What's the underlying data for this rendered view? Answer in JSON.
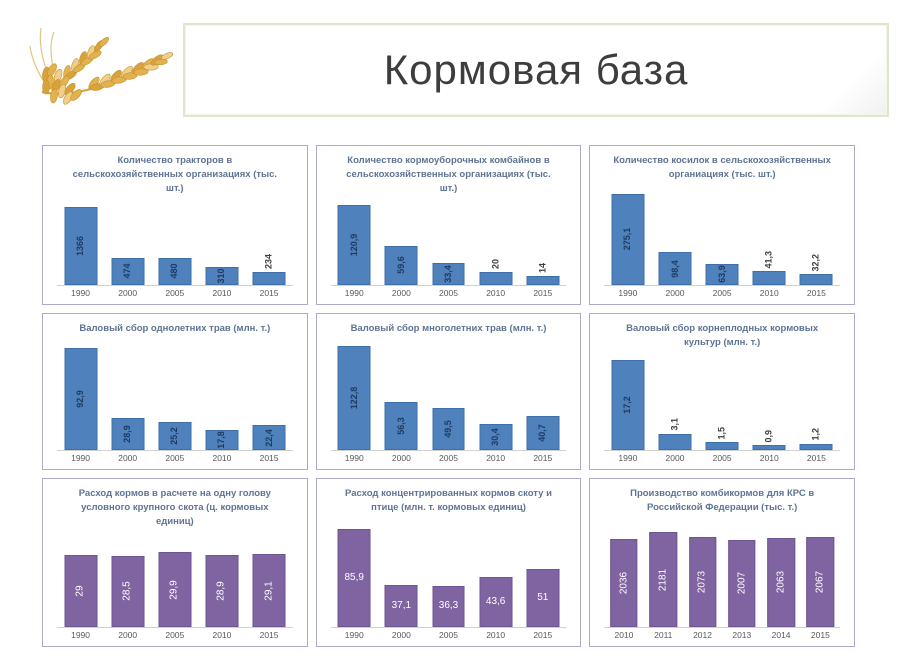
{
  "slide": {
    "title": "Кормовая база"
  },
  "decor": {
    "icon": "wheat-icon"
  },
  "colors": {
    "bar_blue": "#4F81BD",
    "bar_blue_border": "#3E6FA6",
    "bar_purple": "#8064A2",
    "bar_purple_border": "#6C5591",
    "panel_border": "#B2A7C7",
    "title_box_border": "#DDE7CC",
    "chart_title_text": "#5E7494",
    "axis_text": "#595959",
    "label_on_blue": "#1E3A5F",
    "label_outside": "#3F3F3F",
    "label_on_purple": "#FFFFFF"
  },
  "chart_data": [
    {
      "type": "bar",
      "title": "Количество тракторов в сельскохозяйственных организациях (тыс. шт.)",
      "categories": [
        "1990",
        "2000",
        "2005",
        "2010",
        "2015"
      ],
      "values": [
        1366,
        474,
        480,
        310,
        234
      ],
      "labels": [
        "1366",
        "474",
        "480",
        "310",
        "234"
      ],
      "ylim": [
        0,
        1500
      ],
      "series_color": "blue",
      "label_orientation": "vertical",
      "labels_outside": [
        4
      ],
      "grid": false,
      "legend": false
    },
    {
      "type": "bar",
      "title": "Количество кормоуборочных комбайнов в сельскохозяйственных организациях (тыс. шт.)",
      "categories": [
        "1990",
        "2000",
        "2005",
        "2010",
        "2015"
      ],
      "values": [
        120.9,
        59.6,
        33.4,
        20,
        14
      ],
      "labels": [
        "120,9",
        "59,6",
        "33,4",
        "20",
        "14"
      ],
      "ylim": [
        0,
        130
      ],
      "series_color": "blue",
      "label_orientation": "vertical",
      "labels_outside": [
        3,
        4
      ],
      "grid": false,
      "legend": false
    },
    {
      "type": "bar",
      "title": "Количество косилок в сельскохозяйственных органиациях (тыс. шт.)",
      "categories": [
        "1990",
        "2000",
        "2005",
        "2010",
        "2015"
      ],
      "values": [
        275.1,
        98.4,
        63.9,
        41.3,
        32.2
      ],
      "labels": [
        "275,1",
        "98,4",
        "63,9",
        "41,3",
        "32,2"
      ],
      "ylim": [
        0,
        300
      ],
      "series_color": "blue",
      "label_orientation": "vertical",
      "labels_outside": [
        3,
        4
      ],
      "grid": false,
      "legend": false
    },
    {
      "type": "bar",
      "title": "Валовый сбор однолетних трав (млн. т.)",
      "categories": [
        "1990",
        "2000",
        "2005",
        "2010",
        "2015"
      ],
      "values": [
        92.9,
        28.9,
        25.2,
        17.8,
        22.4
      ],
      "labels": [
        "92,9",
        "28,9",
        "25,2",
        "17,8",
        "22,4"
      ],
      "ylim": [
        0,
        100
      ],
      "series_color": "blue",
      "label_orientation": "vertical",
      "labels_outside": [],
      "grid": false,
      "legend": false
    },
    {
      "type": "bar",
      "title": "Валовый сбор многолетних трав (млн. т.)",
      "categories": [
        "1990",
        "2000",
        "2005",
        "2010",
        "2015"
      ],
      "values": [
        122.8,
        56.3,
        49.5,
        30.4,
        40.7
      ],
      "labels": [
        "122,8",
        "56,3",
        "49,5",
        "30,4",
        "40,7"
      ],
      "ylim": [
        0,
        130
      ],
      "series_color": "blue",
      "label_orientation": "vertical",
      "labels_outside": [],
      "grid": false,
      "legend": false
    },
    {
      "type": "bar",
      "title": "Валовый сбор корнеплодных кормовых культур (млн. т.)",
      "categories": [
        "1990",
        "2000",
        "2005",
        "2010",
        "2015"
      ],
      "values": [
        17.2,
        3.1,
        1.5,
        0.9,
        1.2
      ],
      "labels": [
        "17,2",
        "3,1",
        "1,5",
        "0,9",
        "1,2"
      ],
      "ylim": [
        0,
        18.5
      ],
      "series_color": "blue",
      "label_orientation": "vertical",
      "labels_outside": [
        1,
        2,
        3,
        4
      ],
      "grid": false,
      "legend": false
    },
    {
      "type": "bar",
      "title": "Расход кормов в расчете на одну голову условного крупного скота (ц. кормовых единиц)",
      "categories": [
        "1990",
        "2000",
        "2005",
        "2010",
        "2015"
      ],
      "values": [
        29,
        28.5,
        29.9,
        28.9,
        29.1
      ],
      "labels": [
        "29",
        "28,5",
        "29,9",
        "28,9",
        "29,1"
      ],
      "ylim": [
        0,
        38
      ],
      "series_color": "purple",
      "label_orientation": "vertical",
      "labels_outside": [],
      "grid": false,
      "legend": false
    },
    {
      "type": "bar",
      "title": "Расход концентрированных кормов скоту и птице (млн. т. кормовых единиц)",
      "categories": [
        "1990",
        "2000",
        "2005",
        "2010",
        "2015"
      ],
      "values": [
        85.9,
        37.1,
        36.3,
        43.6,
        51
      ],
      "labels": [
        "85,9",
        "37,1",
        "36,3",
        "43,6",
        "51"
      ],
      "ylim": [
        0,
        95
      ],
      "series_color": "purple",
      "label_orientation": "horizontal",
      "labels_outside": [],
      "grid": false,
      "legend": false
    },
    {
      "type": "bar",
      "title": "Производство комбикормов для КРС в Российской Федерации (тыс. т.)",
      "categories": [
        "2010",
        "2011",
        "2012",
        "2013",
        "2014",
        "2015"
      ],
      "values": [
        2036,
        2181,
        2073,
        2007,
        2063,
        2067
      ],
      "labels": [
        "2036",
        "2181",
        "2073",
        "2007",
        "2063",
        "2067"
      ],
      "ylim": [
        0,
        2500
      ],
      "series_color": "purple",
      "label_orientation": "vertical",
      "labels_outside": [],
      "grid": false,
      "legend": false
    }
  ]
}
